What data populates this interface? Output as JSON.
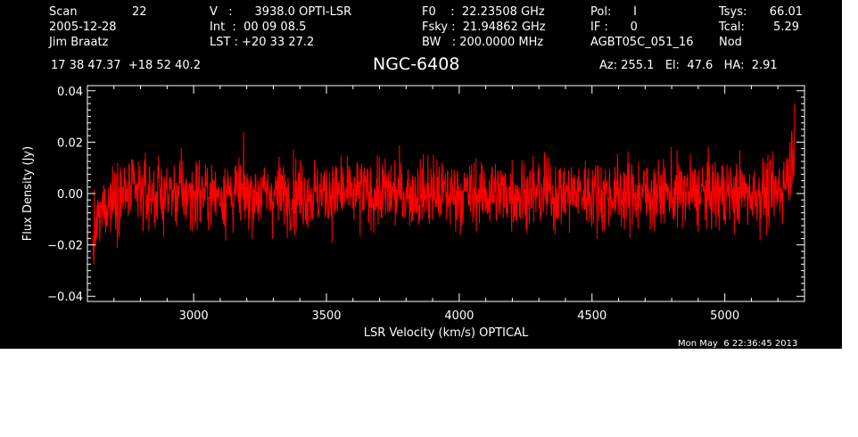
{
  "header": {
    "col1": [
      "Scan",
      "2005-12-28",
      "Jim Braatz"
    ],
    "scan_number": "22",
    "col2": [
      "V   :      3938.0 OPTI-LSR",
      "Int  :  00 09 08.5",
      "LST : +20 33 27.2"
    ],
    "col3": [
      "F0    :  22.23508 GHz",
      "Fsky :  21.94862 GHz",
      "BW   : 200.0000 MHz"
    ],
    "col4": [
      "Pol:      I",
      "IF :      0",
      "AGBT05C_051_16"
    ],
    "col5": [
      "Tsys:",
      "Tcal:",
      "Nod"
    ],
    "col6": [
      "66.01",
      "5.29",
      ""
    ],
    "coordinates": "17 38 47.37  +18 52 40.2",
    "source": "NGC-6408",
    "pointing": "Az: 255.1   El:  47.6   HA:  2.91",
    "timestamp": "Mon May  6 22:36:45 2013"
  },
  "colors": {
    "background": "#000000",
    "foreground": "#ffffff",
    "series": "#ff0000"
  },
  "chart_data": {
    "type": "line",
    "xlabel": "LSR Velocity (km/s) OPTICAL",
    "ylabel": "Flux Density (Jy)",
    "xlim": [
      2600,
      5300
    ],
    "ylim": [
      -0.042,
      0.042
    ],
    "xticks": [
      3000,
      3500,
      4000,
      4500,
      5000
    ],
    "xtick_labels": [
      "3000",
      "3500",
      "4000",
      "4500",
      "5000"
    ],
    "yticks": [
      -0.04,
      -0.02,
      0.0,
      0.02,
      0.04
    ],
    "ytick_labels": [
      "−0.04",
      "−0.02",
      "0.00",
      "0.02",
      "0.04"
    ],
    "grid": false,
    "series": [
      {
        "x_start": 2620,
        "x_end": 5262,
        "noise_sigma_jy": 0.008,
        "baseline_jy": 0.0,
        "left_edge_dip_jy": -0.022,
        "right_edge_spike_jy": 0.035,
        "peak_high_jy": 0.03,
        "peak_low_jy": -0.033
      }
    ]
  }
}
